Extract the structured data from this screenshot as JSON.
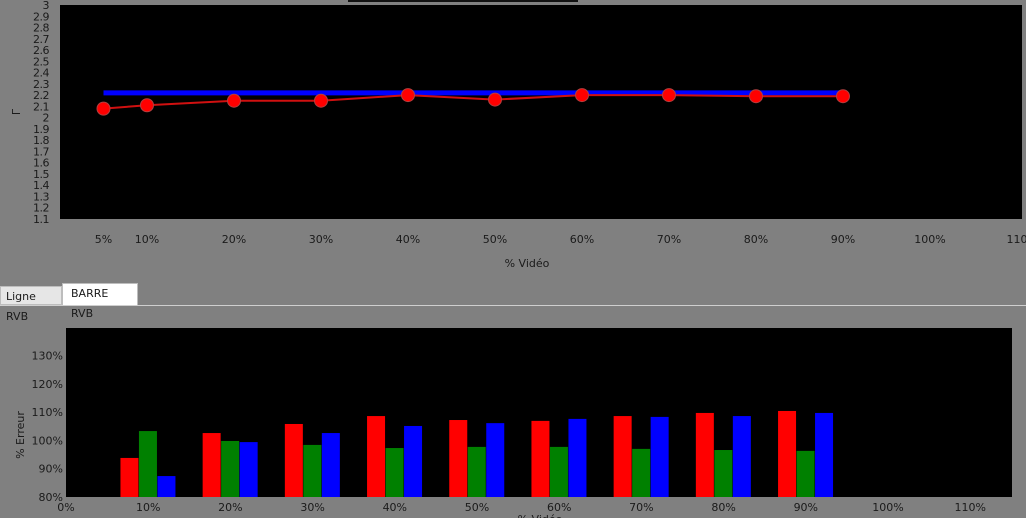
{
  "tabs": [
    {
      "label": "Ligne RVB",
      "active": false
    },
    {
      "label": "BARRE RVB",
      "active": true
    }
  ],
  "chart_data": [
    {
      "type": "line",
      "title": "",
      "xlabel": "% Vidéo",
      "ylabel": "Γ",
      "xlim": [
        0,
        110
      ],
      "ylim": [
        1.1,
        3
      ],
      "x_ticks": [
        5,
        10,
        20,
        30,
        40,
        50,
        60,
        70,
        80,
        90,
        100,
        110
      ],
      "x_tick_labels": [
        "5%",
        "10%",
        "20%",
        "30%",
        "40%",
        "50%",
        "60%",
        "70%",
        "80%",
        "90%",
        "100%",
        "110"
      ],
      "y_tick_labels": [
        "1.1",
        "1.2",
        "1.3",
        "1.4",
        "1.5",
        "1.6",
        "1.7",
        "1.8",
        "1.9",
        "2",
        "2.1",
        "2.2",
        "2.3",
        "2.4",
        "2.5",
        "2.6",
        "2.7",
        "2.8",
        "2.9",
        "3"
      ],
      "background": "#000000",
      "series": [
        {
          "color": "#0000ff",
          "x": [
            5,
            90
          ],
          "y": [
            2.22,
            2.22
          ]
        },
        {
          "color": "#ff0000",
          "marker": "circle",
          "x": [
            5,
            10,
            20,
            30,
            40,
            50,
            60,
            70,
            80,
            90
          ],
          "y": [
            2.08,
            2.11,
            2.15,
            2.15,
            2.2,
            2.16,
            2.2,
            2.2,
            2.19,
            2.19
          ]
        }
      ]
    },
    {
      "type": "bar",
      "title": "",
      "xlabel": "% Vidéo",
      "ylabel": "% Erreur",
      "xlim": [
        0,
        110
      ],
      "ylim": [
        80,
        140
      ],
      "x_tick_labels": [
        "0%",
        "10%",
        "20%",
        "30%",
        "40%",
        "50%",
        "60%",
        "70%",
        "80%",
        "90%",
        "100%",
        "110%"
      ],
      "y_tick_labels": [
        "80%",
        "90%",
        "100%",
        "110%",
        "120%",
        "130%"
      ],
      "background": "#000000",
      "categories": [
        10,
        20,
        30,
        40,
        50,
        60,
        70,
        80,
        90
      ],
      "series": [
        {
          "color": "#ff0000",
          "values": [
            93.8,
            102.6,
            105.8,
            108.6,
            107.2,
            106.9,
            108.6,
            109.7,
            110.4
          ]
        },
        {
          "color": "#008000",
          "values": [
            103.3,
            99.8,
            98.4,
            97.3,
            97.7,
            97.7,
            97.0,
            96.6,
            96.3
          ]
        },
        {
          "color": "#0000ff",
          "values": [
            87.4,
            99.4,
            102.6,
            105.1,
            106.1,
            107.6,
            108.3,
            108.6,
            109.7
          ]
        }
      ]
    }
  ]
}
